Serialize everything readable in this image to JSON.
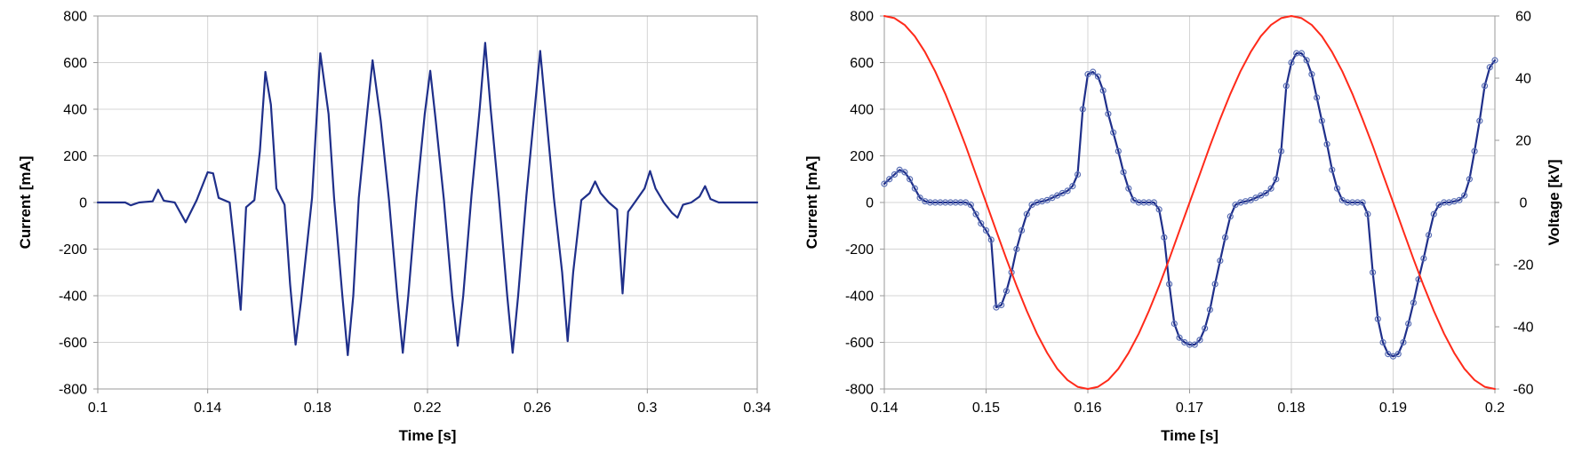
{
  "colors": {
    "current": "#1f2f8a",
    "voltage": "#ff2a1a",
    "grid": "#d4d4d4",
    "frame": "#9a9a9a"
  },
  "chart_data": [
    {
      "type": "line",
      "xlabel": "Time [s]",
      "ylabel": "Current [mA]",
      "xlim": [
        0.1,
        0.34
      ],
      "ylim": [
        -800,
        800
      ],
      "x_ticks": [
        "0.1",
        "0.14",
        "0.18",
        "0.22",
        "0.26",
        "0.3",
        "0.34"
      ],
      "y_ticks": [
        "-800",
        "-600",
        "-400",
        "-200",
        "0",
        "200",
        "400",
        "600",
        "800"
      ],
      "grid": true,
      "series": [
        {
          "color": "#1f2f8a",
          "x": [
            0.1,
            0.11,
            0.112,
            0.115,
            0.12,
            0.122,
            0.124,
            0.128,
            0.132,
            0.136,
            0.14,
            0.142,
            0.144,
            0.148,
            0.15,
            0.152,
            0.154,
            0.157,
            0.159,
            0.161,
            0.163,
            0.165,
            0.168,
            0.17,
            0.172,
            0.174,
            0.178,
            0.181,
            0.184,
            0.186,
            0.189,
            0.191,
            0.193,
            0.195,
            0.198,
            0.2,
            0.203,
            0.206,
            0.209,
            0.211,
            0.213,
            0.216,
            0.219,
            0.221,
            0.223,
            0.226,
            0.229,
            0.231,
            0.233,
            0.236,
            0.239,
            0.241,
            0.243,
            0.246,
            0.249,
            0.251,
            0.253,
            0.256,
            0.259,
            0.261,
            0.263,
            0.266,
            0.269,
            0.271,
            0.273,
            0.276,
            0.279,
            0.281,
            0.283,
            0.286,
            0.289,
            0.291,
            0.293,
            0.296,
            0.299,
            0.301,
            0.303,
            0.306,
            0.309,
            0.311,
            0.313,
            0.316,
            0.319,
            0.321,
            0.323,
            0.326,
            0.34
          ],
          "y": [
            0,
            0,
            -12,
            0,
            5,
            55,
            8,
            0,
            -85,
            10,
            130,
            125,
            20,
            0,
            -220,
            -460,
            -20,
            10,
            220,
            560,
            420,
            60,
            -10,
            -350,
            -610,
            -420,
            20,
            640,
            380,
            20,
            -400,
            -655,
            -400,
            20,
            380,
            610,
            350,
            10,
            -400,
            -645,
            -400,
            20,
            380,
            565,
            350,
            10,
            -400,
            -615,
            -400,
            30,
            400,
            685,
            400,
            20,
            -400,
            -645,
            -400,
            30,
            400,
            650,
            400,
            20,
            -300,
            -595,
            -300,
            10,
            40,
            90,
            40,
            0,
            -30,
            -390,
            -40,
            10,
            60,
            135,
            60,
            0,
            -45,
            -65,
            -10,
            0,
            25,
            70,
            15,
            0,
            0
          ]
        }
      ]
    },
    {
      "type": "line",
      "xlabel": "Time [s]",
      "ylabel": "Current [mA]",
      "y2label": "Voltage [kV]",
      "xlim": [
        0.14,
        0.2
      ],
      "ylim": [
        -800,
        800
      ],
      "y2lim": [
        -60,
        60
      ],
      "x_ticks": [
        "0.14",
        "0.15",
        "0.16",
        "0.17",
        "0.18",
        "0.19",
        "0.2"
      ],
      "y_ticks": [
        "-800",
        "-600",
        "-400",
        "-200",
        "0",
        "200",
        "400",
        "600",
        "800"
      ],
      "y2_ticks": [
        "-60",
        "-40",
        "-20",
        "0",
        "20",
        "40",
        "60"
      ],
      "grid": true,
      "series": [
        {
          "axis": "left",
          "color": "#1f2f8a",
          "markers": true,
          "x": [
            0.14,
            0.1405,
            0.141,
            0.1415,
            0.142,
            0.1425,
            0.143,
            0.1435,
            0.144,
            0.1445,
            0.145,
            0.1455,
            0.146,
            0.1465,
            0.147,
            0.1475,
            0.148,
            0.1485,
            0.149,
            0.1495,
            0.15,
            0.1505,
            0.151,
            0.1515,
            0.152,
            0.1525,
            0.153,
            0.1535,
            0.154,
            0.1545,
            0.155,
            0.1555,
            0.156,
            0.1565,
            0.157,
            0.1575,
            0.158,
            0.1585,
            0.159,
            0.1595,
            0.16,
            0.1605,
            0.161,
            0.1615,
            0.162,
            0.1625,
            0.163,
            0.1635,
            0.164,
            0.1645,
            0.165,
            0.1655,
            0.166,
            0.1665,
            0.167,
            0.1675,
            0.168,
            0.1685,
            0.169,
            0.1695,
            0.17,
            0.1705,
            0.171,
            0.1715,
            0.172,
            0.1725,
            0.173,
            0.1735,
            0.174,
            0.1745,
            0.175,
            0.1755,
            0.176,
            0.1765,
            0.177,
            0.1775,
            0.178,
            0.1785,
            0.179,
            0.1795,
            0.18,
            0.1805,
            0.181,
            0.1815,
            0.182,
            0.1825,
            0.183,
            0.1835,
            0.184,
            0.1845,
            0.185,
            0.1855,
            0.186,
            0.1865,
            0.187,
            0.1875,
            0.188,
            0.1885,
            0.189,
            0.1895,
            0.19,
            0.1905,
            0.191,
            0.1915,
            0.192,
            0.1925,
            0.193,
            0.1935,
            0.194,
            0.1945,
            0.195,
            0.1955,
            0.196,
            0.1965,
            0.197,
            0.1975,
            0.198,
            0.1985,
            0.199,
            0.1995,
            0.2
          ],
          "y": [
            80,
            100,
            120,
            140,
            130,
            100,
            60,
            20,
            5,
            0,
            0,
            0,
            0,
            0,
            0,
            0,
            0,
            -10,
            -50,
            -90,
            -120,
            -160,
            -450,
            -440,
            -380,
            -300,
            -200,
            -120,
            -50,
            -10,
            0,
            5,
            10,
            20,
            30,
            40,
            50,
            70,
            120,
            400,
            550,
            560,
            540,
            480,
            380,
            300,
            220,
            130,
            60,
            10,
            0,
            0,
            0,
            0,
            -30,
            -150,
            -350,
            -520,
            -580,
            -600,
            -610,
            -610,
            -590,
            -540,
            -460,
            -350,
            -250,
            -150,
            -60,
            -10,
            0,
            5,
            10,
            20,
            30,
            40,
            60,
            100,
            220,
            500,
            600,
            640,
            640,
            610,
            550,
            450,
            350,
            250,
            140,
            60,
            10,
            0,
            0,
            0,
            0,
            -50,
            -300,
            -500,
            -600,
            -650,
            -660,
            -650,
            -600,
            -520,
            -430,
            -330,
            -240,
            -140,
            -50,
            -10,
            0,
            0,
            5,
            10,
            30,
            100,
            220,
            350,
            500,
            580,
            610
          ]
        },
        {
          "axis": "right",
          "color": "#ff2a1a",
          "markers": false,
          "x": [
            0.14,
            0.141,
            0.142,
            0.143,
            0.144,
            0.145,
            0.146,
            0.147,
            0.148,
            0.149,
            0.15,
            0.151,
            0.152,
            0.153,
            0.154,
            0.155,
            0.156,
            0.157,
            0.158,
            0.159,
            0.16,
            0.161,
            0.162,
            0.163,
            0.164,
            0.165,
            0.166,
            0.167,
            0.168,
            0.169,
            0.17,
            0.171,
            0.172,
            0.173,
            0.174,
            0.175,
            0.176,
            0.177,
            0.178,
            0.179,
            0.18,
            0.181,
            0.182,
            0.183,
            0.184,
            0.185,
            0.186,
            0.187,
            0.188,
            0.189,
            0.19,
            0.191,
            0.192,
            0.193,
            0.194,
            0.195,
            0.196,
            0.197,
            0.198,
            0.199,
            0.2
          ],
          "y": [
            60,
            59.3,
            57.1,
            53.5,
            48.4,
            42.2,
            34.9,
            26.8,
            18.2,
            9.1,
            0,
            -9.1,
            -18.2,
            -26.8,
            -34.9,
            -42.2,
            -48.4,
            -53.5,
            -57.1,
            -59.3,
            -60,
            -59.3,
            -57.1,
            -53.5,
            -48.4,
            -42.2,
            -34.9,
            -26.8,
            -18.2,
            -9.1,
            0,
            9.1,
            18.2,
            26.8,
            34.9,
            42.2,
            48.4,
            53.5,
            57.1,
            59.3,
            60,
            59.3,
            57.1,
            53.5,
            48.4,
            42.2,
            34.9,
            26.8,
            18.2,
            9.1,
            0,
            -9.1,
            -18.2,
            -26.8,
            -34.9,
            -42.2,
            -48.4,
            -53.5,
            -57.1,
            -59.3,
            -60
          ]
        }
      ]
    }
  ]
}
